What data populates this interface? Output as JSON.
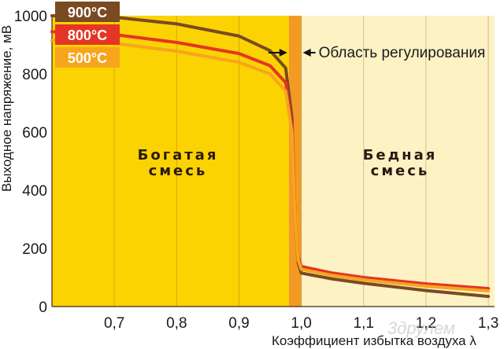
{
  "chart_data": {
    "type": "line",
    "ylabel": "Выходное напряжение, мВ",
    "xlabel": "Коэффициент избытка воздуха λ",
    "xlim": [
      0.6,
      1.31
    ],
    "ylim": [
      0,
      1000
    ],
    "x_ticks": [
      0.7,
      0.8,
      0.9,
      1.0,
      1.1,
      1.2,
      1.3
    ],
    "x_tick_labels": [
      "0,7",
      "0,8",
      "0,9",
      "1,0",
      "1,1",
      "1,2",
      "1,3"
    ],
    "y_ticks": [
      0,
      200,
      400,
      600,
      800,
      1000
    ],
    "y_tick_labels": [
      "0",
      "200",
      "400",
      "600",
      "800",
      "1000"
    ],
    "grid": "vertical",
    "regions": [
      {
        "label_lines": [
          "Богатая",
          "смесь"
        ],
        "x_from": 0.6,
        "x_to": 0.98,
        "color": "#fcd302"
      },
      {
        "label_lines": [
          "Бедная",
          "смесь"
        ],
        "x_from": 1.0,
        "x_to": 1.31,
        "color": "#fdf2c4"
      }
    ],
    "control_band": {
      "x_from": 0.98,
      "x_to": 1.0,
      "label": "Область регулирования",
      "color": "#f39a22"
    },
    "series": [
      {
        "name": "900°C",
        "color": "#7a4a22",
        "points": [
          [
            0.6,
            1000
          ],
          [
            0.7,
            995
          ],
          [
            0.8,
            972
          ],
          [
            0.9,
            930
          ],
          [
            0.95,
            880
          ],
          [
            0.975,
            820
          ],
          [
            0.985,
            650
          ],
          [
            0.99,
            300
          ],
          [
            0.995,
            150
          ],
          [
            1.0,
            115
          ],
          [
            1.05,
            95
          ],
          [
            1.1,
            80
          ],
          [
            1.2,
            55
          ],
          [
            1.3,
            35
          ]
        ]
      },
      {
        "name": "800°C",
        "color": "#e53524",
        "points": [
          [
            0.6,
            945
          ],
          [
            0.7,
            935
          ],
          [
            0.8,
            908
          ],
          [
            0.9,
            870
          ],
          [
            0.95,
            828
          ],
          [
            0.975,
            770
          ],
          [
            0.985,
            620
          ],
          [
            0.99,
            300
          ],
          [
            0.995,
            170
          ],
          [
            1.0,
            138
          ],
          [
            1.05,
            115
          ],
          [
            1.1,
            100
          ],
          [
            1.2,
            78
          ],
          [
            1.3,
            62
          ]
        ]
      },
      {
        "name": "500°C",
        "color": "#f7a51c",
        "points": [
          [
            0.6,
            915
          ],
          [
            0.7,
            905
          ],
          [
            0.8,
            878
          ],
          [
            0.9,
            840
          ],
          [
            0.95,
            800
          ],
          [
            0.975,
            740
          ],
          [
            0.985,
            600
          ],
          [
            0.99,
            300
          ],
          [
            0.995,
            160
          ],
          [
            1.0,
            128
          ],
          [
            1.05,
            107
          ],
          [
            1.1,
            92
          ],
          [
            1.2,
            70
          ],
          [
            1.3,
            54
          ]
        ]
      }
    ]
  },
  "watermark": "3друлем"
}
